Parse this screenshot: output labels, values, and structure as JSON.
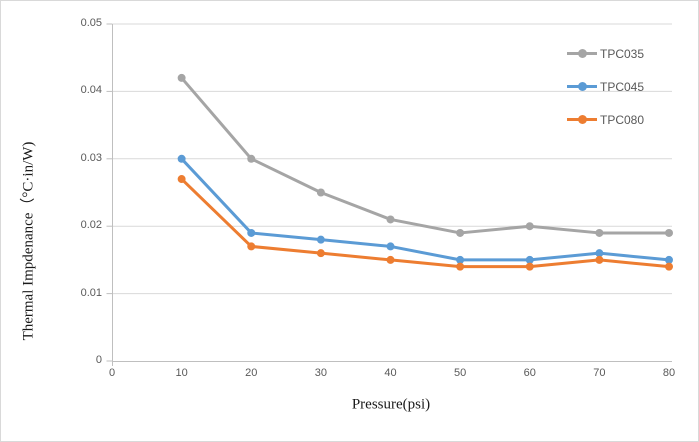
{
  "window": {
    "background": "#ffffff",
    "border_color": "#d9d9d9"
  },
  "colors": {
    "gridline": "#d9d9d9",
    "axis_line": "#bfbfbf",
    "tick_text": "#595959",
    "axis_title_text": "#1a1a1a"
  },
  "chart_data": {
    "type": "line",
    "title": "",
    "xlabel": "Pressure(psi)",
    "ylabel": "Thermal Impdenance（°C·in/W)",
    "x": [
      10,
      20,
      30,
      40,
      50,
      60,
      70,
      80
    ],
    "xlim": [
      0,
      80
    ],
    "ylim": [
      0,
      0.05
    ],
    "xticks": [
      "0",
      "10",
      "20",
      "30",
      "40",
      "50",
      "60",
      "70",
      "80"
    ],
    "yticks": [
      "0",
      "0.01",
      "0.02",
      "0.03",
      "0.04",
      "0.05"
    ],
    "grid": "horizontal",
    "legend_position": "upper-right",
    "marker": "circle",
    "series": [
      {
        "name": "TPC035",
        "color": "#a5a5a5",
        "values": [
          0.042,
          0.03,
          0.025,
          0.021,
          0.019,
          0.02,
          0.019,
          0.019
        ]
      },
      {
        "name": "TPC045",
        "color": "#5b9bd5",
        "values": [
          0.03,
          0.019,
          0.018,
          0.017,
          0.015,
          0.015,
          0.016,
          0.015
        ]
      },
      {
        "name": "TPC080",
        "color": "#ed7d31",
        "values": [
          0.027,
          0.017,
          0.016,
          0.015,
          0.014,
          0.014,
          0.015,
          0.014
        ]
      }
    ]
  }
}
